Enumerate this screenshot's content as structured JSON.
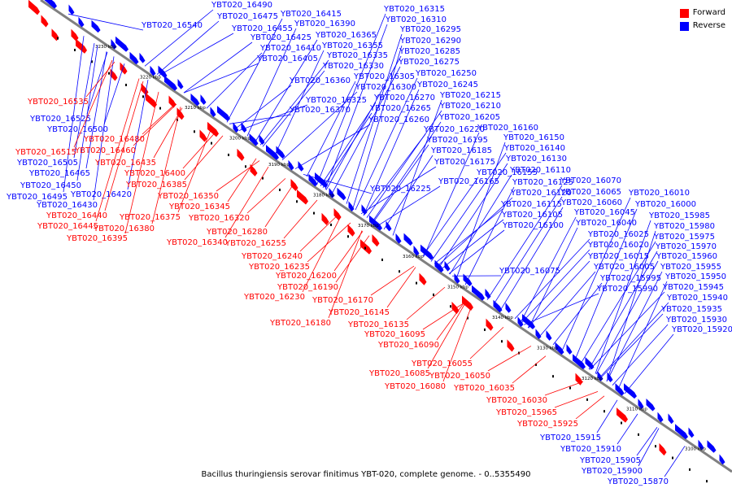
{
  "legend": [
    {
      "label": "Forward",
      "color": "#ff0000"
    },
    {
      "label": "Reverse",
      "color": "#0000ff"
    }
  ],
  "caption": "Bacillus thuringiensis serovar finitimus YBT-020, complete genome. - 0..5355490",
  "colors": {
    "forward": "#ff0000",
    "reverse": "#0000ff",
    "axis": "#808080"
  },
  "ruler_ticks": [
    "3230 kbp",
    "3220 kbp",
    "3210 kbp",
    "3200 kbp",
    "3190 kbp",
    "3180 kbp",
    "3170 kbp",
    "3160 kbp",
    "3150 kbp",
    "3140 kbp",
    "3130 kbp",
    "3120 kbp",
    "3110 kbp",
    "3100 kbp"
  ],
  "reverse_genes": [
    "YBT020_16540",
    "YBT020_16490",
    "YBT020_16475",
    "YBT020_16415",
    "YBT020_16390",
    "YBT020_16455",
    "YBT020_16425",
    "YBT020_16365",
    "YBT020_16410",
    "YBT020_16355",
    "YBT020_16405",
    "YBT020_16335",
    "YBT020_16330",
    "YBT020_16360",
    "YBT020_16305",
    "YBT020_16300",
    "YBT020_16325",
    "YBT020_16370",
    "YBT020_16270",
    "YBT020_16265",
    "YBT020_16260",
    "YBT020_16315",
    "YBT020_16310",
    "YBT020_16295",
    "YBT020_16290",
    "YBT020_16285",
    "YBT020_16275",
    "YBT020_16250",
    "YBT020_16245",
    "YBT020_16215",
    "YBT020_16210",
    "YBT020_16205",
    "YBT020_16220",
    "YBT020_16195",
    "YBT020_16185",
    "YBT020_16175",
    "YBT020_16225",
    "YBT020_16165",
    "YBT020_16160",
    "YBT020_16150",
    "YBT020_16140",
    "YBT020_16130",
    "YBT020_16110",
    "YBT020_16155",
    "YBT020_16125",
    "YBT020_16120",
    "YBT020_16115",
    "YBT020_16105",
    "YBT020_16100",
    "YBT020_16075",
    "YBT020_16070",
    "YBT020_16065",
    "YBT020_16060",
    "YBT020_16045",
    "YBT020_16040",
    "YBT020_16025",
    "YBT020_16020",
    "YBT020_16015",
    "YBT020_16005",
    "YBT020_15995",
    "YBT020_15990",
    "YBT020_16010",
    "YBT020_16000",
    "YBT020_15985",
    "YBT020_15980",
    "YBT020_15975",
    "YBT020_15970",
    "YBT020_15960",
    "YBT020_15955",
    "YBT020_15950",
    "YBT020_15945",
    "YBT020_15940",
    "YBT020_15935",
    "YBT020_15930",
    "YBT020_15920",
    "YBT020_16525",
    "YBT020_16500",
    "YBT020_16505",
    "YBT020_16465",
    "YBT020_16450",
    "YBT020_16495",
    "YBT020_16430",
    "YBT020_16420",
    "YBT020_15915",
    "YBT020_15910",
    "YBT020_15905",
    "YBT020_15900",
    "YBT020_15870"
  ],
  "forward_genes": [
    "YBT020_16535",
    "YBT020_16480",
    "YBT020_16515",
    "YBT020_16460",
    "YBT020_16435",
    "YBT020_16400",
    "YBT020_16385",
    "YBT020_16350",
    "YBT020_16345",
    "YBT020_16375",
    "YBT020_16440",
    "YBT020_16445",
    "YBT020_16380",
    "YBT020_16395",
    "YBT020_16320",
    "YBT020_16340",
    "YBT020_16280",
    "YBT020_16255",
    "YBT020_16240",
    "YBT020_16235",
    "YBT020_16200",
    "YBT020_16190",
    "YBT020_16230",
    "YBT020_16170",
    "YBT020_16145",
    "YBT020_16180",
    "YBT020_16135",
    "YBT020_16095",
    "YBT020_16090",
    "YBT020_16055",
    "YBT020_16085",
    "YBT020_16050",
    "YBT020_16080",
    "YBT020_16035",
    "YBT020_16030",
    "YBT020_15965",
    "YBT020_15925"
  ]
}
